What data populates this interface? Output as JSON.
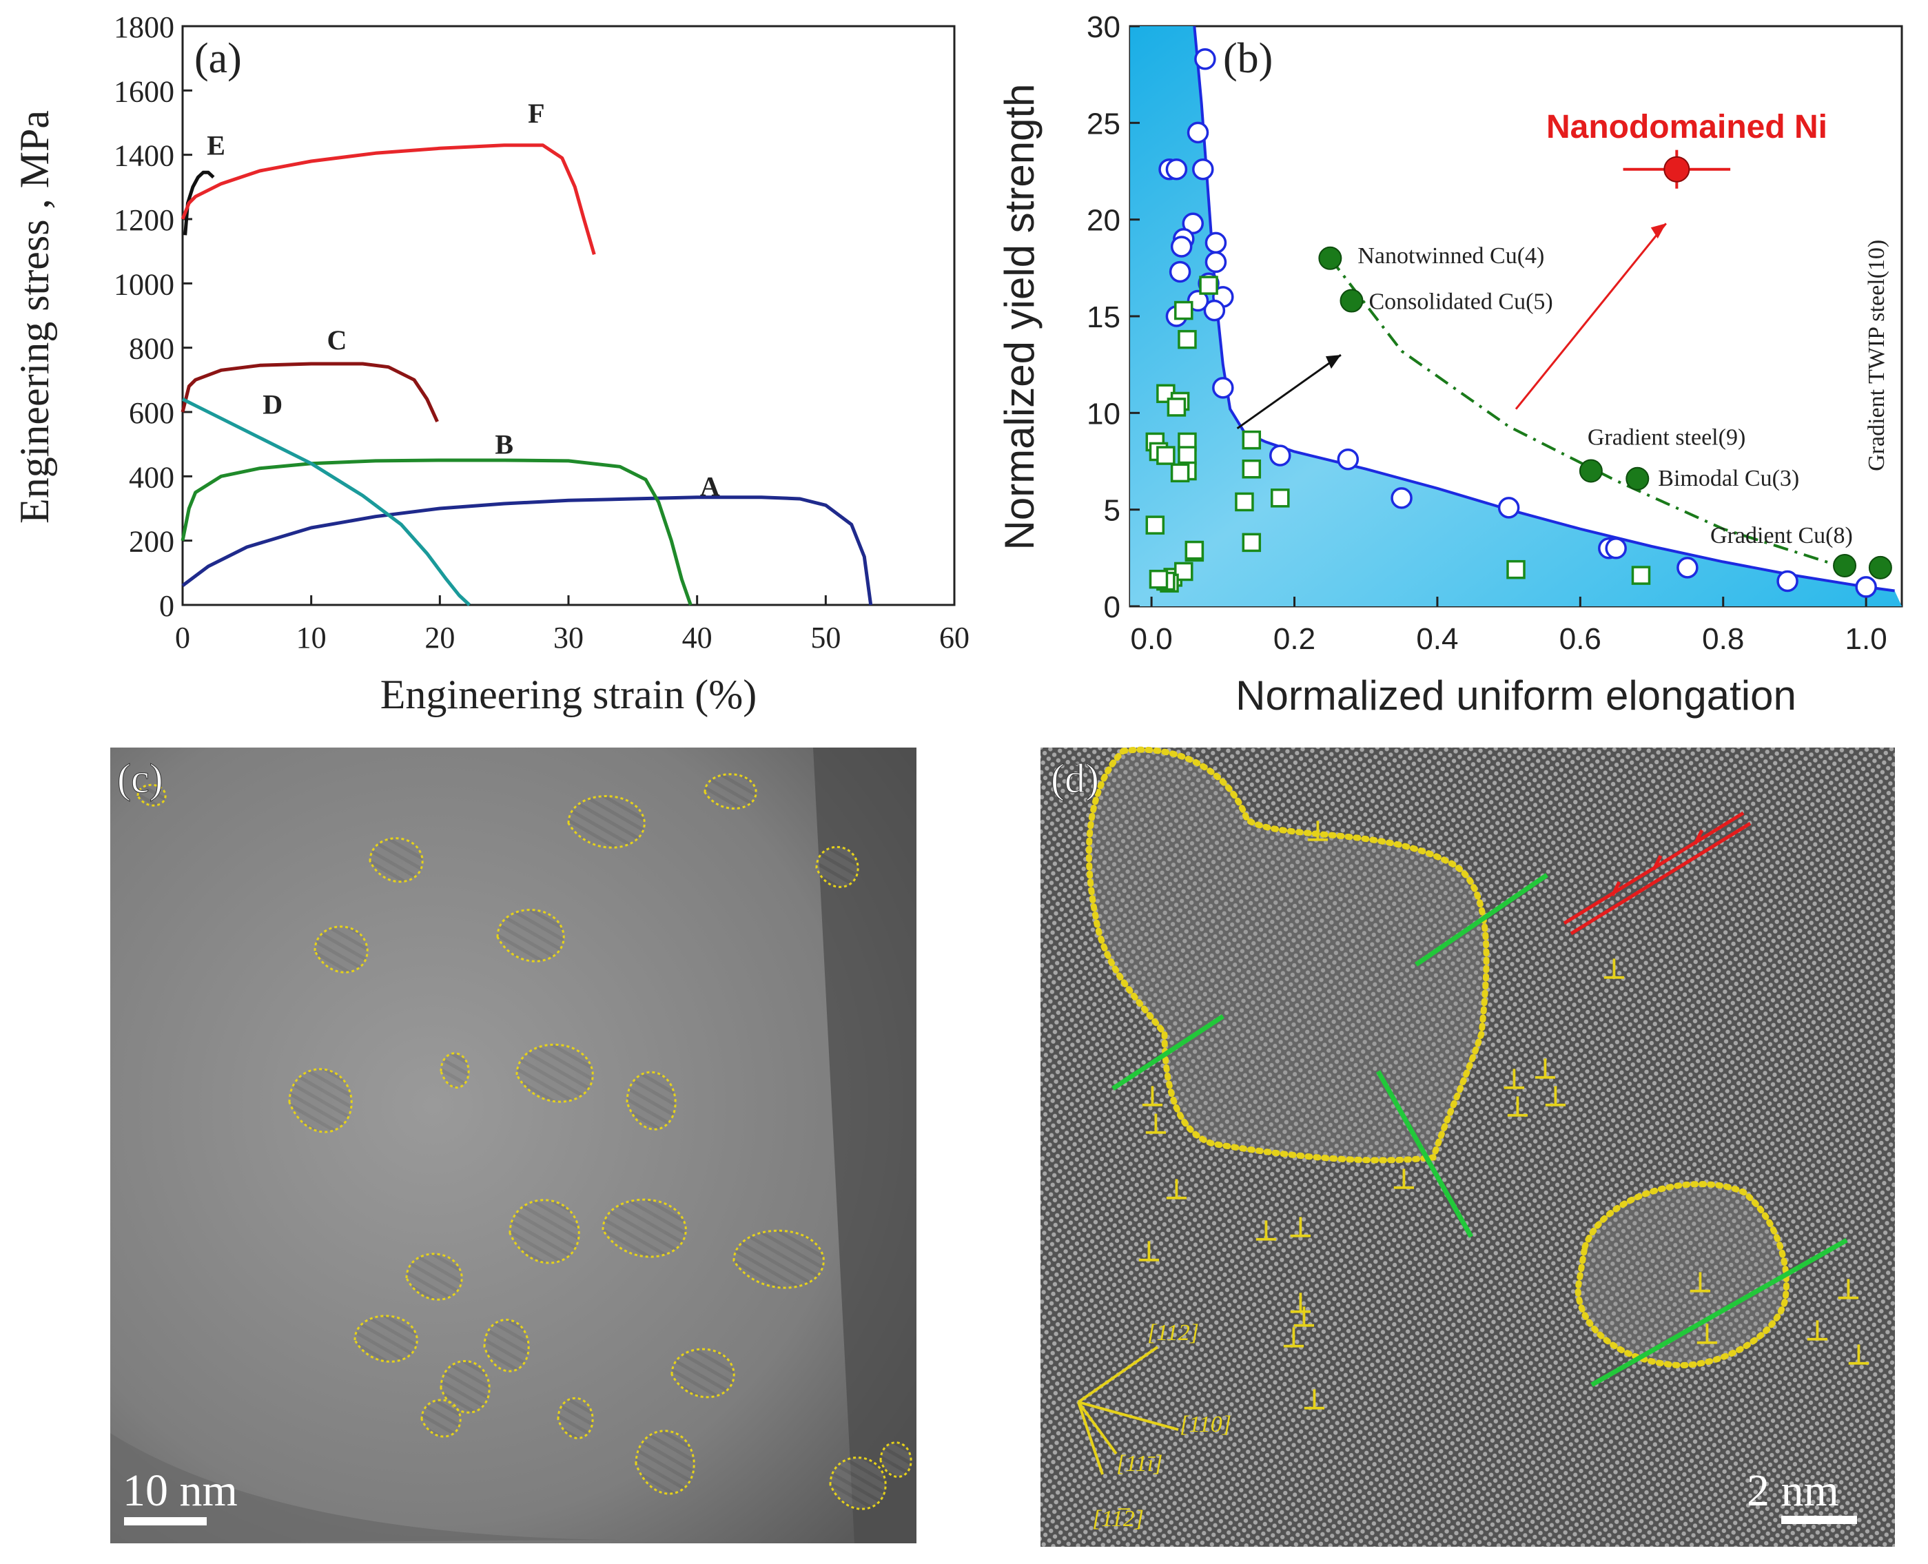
{
  "colors": {
    "A": "#1f2a8c",
    "B": "#1f8a2a",
    "C": "#8c1414",
    "D": "#1a9a9a",
    "E": "#111111",
    "F": "#e8262a",
    "blue_marker": "#1d2ae0",
    "green_marker": "#1a7a1a",
    "red": "#e51c1c",
    "fill": "#29b6e8",
    "yellow": "#e6d21a",
    "green_line": "#22c83a"
  },
  "panel_a": {
    "panel_label": "(a)",
    "chart_type": "line"
  },
  "panel_b": {
    "panel_label": "(b)",
    "highlight_label": "Nanodomained Ni"
  },
  "panel_c": {
    "panel_label": "(c)",
    "scale_bar": "10 nm"
  },
  "panel_d": {
    "panel_label": "(d)",
    "scale_bar": "2 nm",
    "directions": [
      "[112]",
      "[110]",
      "[11ī]",
      "[11̅2]"
    ]
  },
  "chart_data": [
    {
      "type": "line",
      "title": "(a)",
      "xlabel": "Engineering strain (%)",
      "ylabel": "Engineering stress , MPa",
      "xlim": [
        0,
        60
      ],
      "ylim": [
        0,
        1800
      ],
      "xticks": [
        0,
        10,
        20,
        30,
        40,
        50,
        60
      ],
      "yticks": [
        0,
        200,
        400,
        600,
        800,
        1000,
        1200,
        1400,
        1600,
        1800
      ],
      "series": [
        {
          "name": "A",
          "label_at": [
            41,
            340
          ],
          "x": [
            0,
            2,
            5,
            10,
            15,
            20,
            25,
            30,
            35,
            40,
            45,
            48,
            50,
            52,
            53,
            53.5
          ],
          "y": [
            60,
            120,
            180,
            240,
            275,
            300,
            315,
            325,
            330,
            335,
            335,
            330,
            310,
            250,
            150,
            0
          ]
        },
        {
          "name": "B",
          "label_at": [
            25,
            470
          ],
          "x": [
            0,
            0.5,
            1,
            3,
            6,
            10,
            15,
            20,
            25,
            30,
            34,
            36,
            37,
            38,
            38.8,
            39.5
          ],
          "y": [
            200,
            300,
            350,
            400,
            425,
            440,
            448,
            450,
            450,
            448,
            430,
            390,
            320,
            200,
            80,
            0
          ]
        },
        {
          "name": "C",
          "label_at": [
            12,
            795
          ],
          "x": [
            0,
            0.5,
            1,
            3,
            6,
            10,
            14,
            16,
            18,
            19,
            19.8
          ],
          "y": [
            600,
            680,
            700,
            730,
            745,
            750,
            750,
            740,
            700,
            640,
            570
          ]
        },
        {
          "name": "D",
          "label_at": [
            7,
            595
          ],
          "x": [
            0,
            0.5,
            1,
            3,
            6,
            10,
            14,
            17,
            19,
            20.5,
            21.5,
            22.3
          ],
          "y": [
            640,
            630,
            620,
            580,
            520,
            440,
            340,
            250,
            160,
            80,
            30,
            0
          ]
        },
        {
          "name": "E",
          "label_at": [
            2.6,
            1400
          ],
          "x": [
            0.2,
            0.4,
            0.8,
            1.2,
            1.6,
            2.0,
            2.4
          ],
          "y": [
            1150,
            1250,
            1300,
            1330,
            1345,
            1345,
            1330
          ]
        },
        {
          "name": "F",
          "label_at": [
            27.5,
            1500
          ],
          "x": [
            0,
            0.5,
            1,
            3,
            6,
            10,
            15,
            20,
            25,
            28,
            29.5,
            30.5,
            31.2,
            32
          ],
          "y": [
            1200,
            1250,
            1270,
            1310,
            1350,
            1380,
            1405,
            1420,
            1430,
            1430,
            1390,
            1300,
            1200,
            1090
          ]
        }
      ]
    },
    {
      "type": "scatter",
      "title": "(b)",
      "xlabel": "Normalized uniform elongation",
      "ylabel": "Normalized yield strength",
      "xlim": [
        -0.03,
        1.05
      ],
      "ylim": [
        0,
        30
      ],
      "xticks": [
        0.0,
        0.2,
        0.4,
        0.6,
        0.8,
        1.0
      ],
      "yticks": [
        0,
        5,
        10,
        15,
        20,
        25,
        30
      ],
      "series": [
        {
          "name": "circles",
          "x": [
            0.075,
            0.065,
            0.025,
            0.035,
            0.072,
            0.058,
            0.045,
            0.042,
            0.09,
            0.09,
            0.04,
            0.08,
            0.1,
            0.088,
            0.065,
            0.035,
            0.1,
            0.18,
            0.275,
            0.35,
            0.5,
            0.64,
            0.65,
            0.75,
            0.89,
            1.0
          ],
          "y": [
            28.3,
            24.5,
            22.6,
            22.6,
            22.6,
            19.8,
            19.0,
            18.6,
            18.8,
            17.8,
            17.3,
            16.7,
            16.0,
            15.3,
            15.8,
            15.0,
            11.3,
            7.8,
            7.6,
            5.6,
            5.1,
            3.0,
            3.0,
            2.0,
            1.3,
            1.0
          ]
        },
        {
          "name": "squares",
          "x": [
            0.02,
            0.04,
            0.005,
            0.05,
            0.035,
            0.01,
            0.05,
            0.045,
            0.05,
            0.05,
            0.06,
            0.005,
            0.03,
            0.045,
            0.025,
            0.02,
            0.06,
            0.02,
            0.04,
            0.01,
            0.08,
            0.14,
            0.14,
            0.13,
            0.18,
            0.14,
            0.51,
            0.685
          ],
          "y": [
            11.0,
            10.6,
            8.5,
            8.5,
            10.3,
            8.0,
            13.8,
            15.3,
            7.8,
            7.0,
            2.8,
            4.2,
            1.5,
            1.8,
            1.2,
            7.8,
            2.9,
            1.3,
            6.9,
            1.4,
            16.6,
            8.6,
            7.1,
            5.4,
            5.6,
            3.3,
            1.9,
            1.6
          ]
        },
        {
          "name": "Literature",
          "x": [
            0.25,
            0.28,
            0.615,
            0.68,
            0.97,
            1.02
          ],
          "y": [
            18.0,
            15.8,
            7.0,
            6.6,
            2.1,
            2.0
          ],
          "labels": [
            "Nanotwinned Cu(4)",
            "Consolidated Cu(5)",
            "Gradient steel(9)",
            "Bimodal Cu(3)",
            "Gradient Cu(8)",
            "Gradient TWIP steel(10)"
          ]
        },
        {
          "name": "Nanodomained Ni",
          "x": [
            0.735
          ],
          "y": [
            22.6
          ],
          "xerr": 0.075,
          "yerr": 1.0
        }
      ],
      "boundary_curve": {
        "x": [
          0.06,
          0.07,
          0.08,
          0.09,
          0.1,
          0.11,
          0.13,
          0.16,
          0.2,
          0.3,
          0.4,
          0.5,
          0.6,
          0.7,
          0.8,
          0.9,
          1.0,
          1.04
        ],
        "y": [
          30,
          26,
          21,
          16,
          12.5,
          10.2,
          9.0,
          8.5,
          8.0,
          7.1,
          6.1,
          5.0,
          4.0,
          3.1,
          2.3,
          1.6,
          1.0,
          0.8
        ]
      }
    }
  ]
}
